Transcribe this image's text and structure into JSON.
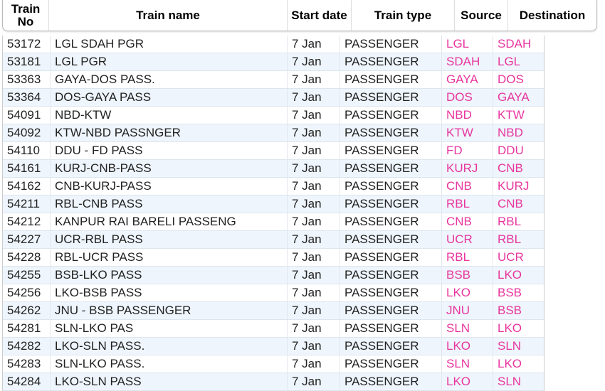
{
  "header": {
    "columns": [
      "Train No",
      "Train name",
      "Start date",
      "Train type",
      "Source",
      "Destination"
    ]
  },
  "table": {
    "rows": [
      [
        "53172",
        "LGL SDAH PGR",
        "7 Jan",
        "PASSENGER",
        "LGL",
        "SDAH"
      ],
      [
        "53181",
        "LGL PGR",
        "7 Jan",
        "PASSENGER",
        "SDAH",
        "LGL"
      ],
      [
        "53363",
        "GAYA-DOS PASS.",
        "7 Jan",
        "PASSENGER",
        "GAYA",
        "DOS"
      ],
      [
        "53364",
        "DOS-GAYA PASS",
        "7 Jan",
        "PASSENGER",
        "DOS",
        "GAYA"
      ],
      [
        "54091",
        "NBD-KTW",
        "7 Jan",
        "PASSENGER",
        "NBD",
        "KTW"
      ],
      [
        "54092",
        "KTW-NBD PASSNGER",
        "7 Jan",
        "PASSENGER",
        "KTW",
        "NBD"
      ],
      [
        "54110",
        "DDU - FD PASS",
        "7 Jan",
        "PASSENGER",
        "FD",
        "DDU"
      ],
      [
        "54161",
        "KURJ-CNB-PASS",
        "7 Jan",
        "PASSENGER",
        "KURJ",
        "CNB"
      ],
      [
        "54162",
        "CNB-KURJ-PASS",
        "7 Jan",
        "PASSENGER",
        "CNB",
        "KURJ"
      ],
      [
        "54211",
        "RBL-CNB PASS",
        "7 Jan",
        "PASSENGER",
        "RBL",
        "CNB"
      ],
      [
        "54212",
        "KANPUR RAI BARELI PASSENG",
        "7 Jan",
        "PASSENGER",
        "CNB",
        "RBL"
      ],
      [
        "54227",
        "UCR-RBL PASS",
        "7 Jan",
        "PASSENGER",
        "UCR",
        "RBL"
      ],
      [
        "54228",
        "RBL-UCR PASS",
        "7 Jan",
        "PASSENGER",
        "RBL",
        "UCR"
      ],
      [
        "54255",
        "BSB-LKO PASS",
        "7 Jan",
        "PASSENGER",
        "BSB",
        "LKO"
      ],
      [
        "54256",
        "LKO-BSB PASS",
        "7 Jan",
        "PASSENGER",
        "LKO",
        "BSB"
      ],
      [
        "54262",
        "JNU - BSB PASSENGER",
        "7 Jan",
        "PASSENGER",
        "JNU",
        "BSB"
      ],
      [
        "54281",
        "SLN-LKO PAS",
        "7 Jan",
        "PASSENGER",
        "SLN",
        "LKO"
      ],
      [
        "54282",
        "LKO-SLN PASS.",
        "7 Jan",
        "PASSENGER",
        "LKO",
        "SLN"
      ],
      [
        "54283",
        "SLN-LKO PASS.",
        "7 Jan",
        "PASSENGER",
        "SLN",
        "LKO"
      ],
      [
        "54284",
        "LKO-SLN PASS",
        "7 Jan",
        "PASSENGER",
        "LKO",
        "SLN"
      ]
    ]
  }
}
